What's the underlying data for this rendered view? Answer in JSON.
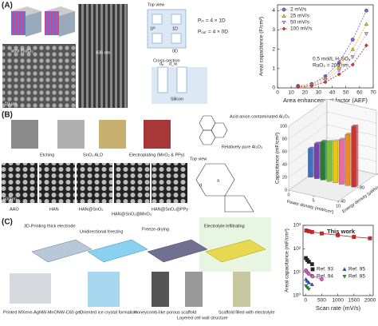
{
  "figure": {
    "panel_a": {
      "label": "(A)",
      "sem": [
        "w/o RuO₂",
        "436 nm",
        "10 µm"
      ],
      "schematic": {
        "top_view": "Top view",
        "dims": [
          "1P",
          "1D",
          "0D"
        ],
        "p_in": "Pᵢₙ = 4 × 1D",
        "p_out": "Pₒᵤₜ = 4 × 0D",
        "cross_section": "Cross-section",
        "d_p": "dₚ",
        "d_w": "d_w",
        "silicon": "Silicon"
      }
    },
    "panel_b": {
      "label": "(B)",
      "steps": [
        "Etching",
        "SnO₂ ALD",
        "Electroplating\n(MnO₂ & PPy)"
      ],
      "sem": [
        "AAO",
        "HAN",
        "HAN@SnO₂",
        "HAN@SnO₂@MnO₂",
        "HAN@SnO₂@PPy"
      ],
      "scale": "500nm",
      "diagram": {
        "contaminated": "Acid anion contaminated Al₂O₃",
        "pure": "Relatively pure Al₂O₃",
        "top_view": "Top view",
        "d": "d",
        "a": "a"
      }
    },
    "panel_c": {
      "label": "(C)",
      "steps": [
        "3D-Printing thick electrode",
        "Unidirectional freezing",
        "Freeze-drying",
        "Electrolyte infiltrating"
      ],
      "captions": [
        "Printed MXene-AgNW-MnONW-C60 gel",
        "Oriented ice crystal formation",
        "Honeycomb-like porous scaffold",
        "Layered cell wall structure",
        "Scaffold filled with electrolyte"
      ]
    }
  },
  "chart_data": [
    {
      "type": "line",
      "xlabel": "Area enhancement factor (AEF)",
      "ylabel": "Areal capacitance (F/cm²)",
      "x": [
        15,
        25,
        35,
        45,
        55,
        65
      ],
      "xlim": [
        0,
        70
      ],
      "xticks": [
        0,
        10,
        20,
        30,
        40,
        50,
        60,
        70
      ],
      "ylim": [
        0,
        4.3
      ],
      "yticks": [
        0,
        1,
        2,
        3,
        4
      ],
      "line_style": "dashed",
      "series": [
        {
          "name": "2 mV/s",
          "color": "#8e5fc9",
          "marker": "circle",
          "values": [
            0.1,
            0.2,
            0.6,
            1.3,
            2.5,
            4.0
          ]
        },
        {
          "name": "25 mV/s",
          "color": "#e8c21c",
          "marker": "triangle-up",
          "values": [
            0.1,
            0.2,
            0.5,
            1.1,
            2.0,
            3.3
          ]
        },
        {
          "name": "50 mV/s",
          "color": "#c9a6e8",
          "marker": "triangle-down",
          "values": [
            0.05,
            0.15,
            0.4,
            0.9,
            1.6,
            2.8
          ]
        },
        {
          "name": "100 mV/s",
          "color": "#e03030",
          "marker": "diamond",
          "values": [
            0.05,
            0.1,
            0.3,
            0.7,
            1.2,
            2.2
          ]
        }
      ],
      "annotations": [
        "0.5 mol/L H₂SO₄",
        "RuO₂ = 200 nm"
      ]
    },
    {
      "type": "bar3d",
      "ylabel": "Capacitance (mF/cm²)",
      "xlabel": "Power density (mW/cm²)",
      "zlabel": "Energy density (µWh/cm²)",
      "categories": [
        null,
        null,
        null,
        null,
        null,
        null,
        null,
        null
      ],
      "values": [
        45,
        55,
        60,
        62,
        65,
        70,
        80,
        95
      ],
      "colors": [
        "#3d6fc4",
        "#7a3fb0",
        "#2a7a3a",
        "#7bc043",
        "#e6c619",
        "#e86aa8",
        "#f08c1a",
        "#d33030"
      ],
      "ylim": [
        0,
        100
      ],
      "yticks": [
        0,
        20,
        40,
        60,
        80,
        100
      ],
      "xlim": [
        0,
        10
      ],
      "xticks": [
        0,
        5,
        10
      ],
      "zlim": [
        40,
        120
      ],
      "zticks": [
        40,
        80,
        120
      ]
    },
    {
      "type": "scatter",
      "xlabel": "Scan rate (mV/s)",
      "ylabel": "Areal capacitance (mF/cm²)",
      "log_y": true,
      "xlim": [
        -80,
        2100
      ],
      "xticks": [
        0,
        500,
        1000,
        1500,
        2000
      ],
      "ylim": [
        1,
        1000
      ],
      "yticks": [
        {
          "value": 1,
          "label": "10⁰"
        },
        {
          "value": 10,
          "label": "10¹"
        },
        {
          "value": 100,
          "label": "10²"
        },
        {
          "value": 1000,
          "label": "10³"
        }
      ],
      "series": [
        {
          "name": "This work",
          "color": "#e02020",
          "marker": "square",
          "x": [
            20,
            100,
            200,
            500,
            1000,
            1500,
            2000
          ],
          "values": [
            600,
            560,
            520,
            450,
            380,
            320,
            280
          ]
        },
        {
          "name": "Ref. 93",
          "color": "#222222",
          "marker": "square",
          "x": [
            10,
            50,
            100,
            200
          ],
          "values": [
            40,
            33,
            28,
            22
          ]
        },
        {
          "name": "Ref. 94",
          "color": "#d060c0",
          "marker": "circle",
          "x": [
            10,
            50,
            100,
            200,
            500
          ],
          "values": [
            12,
            10,
            8.5,
            7,
            5
          ]
        },
        {
          "name": "Ref. 95",
          "color": "#3050d0",
          "marker": "triangle-up",
          "x": [
            10,
            50,
            100,
            200
          ],
          "values": [
            5,
            4.2,
            3.6,
            3
          ]
        },
        {
          "name": "Ref. 85",
          "color": "#20a040",
          "marker": "triangle-down",
          "x": [
            10,
            50,
            100
          ],
          "values": [
            2.6,
            2.2,
            1.9
          ]
        }
      ]
    }
  ]
}
